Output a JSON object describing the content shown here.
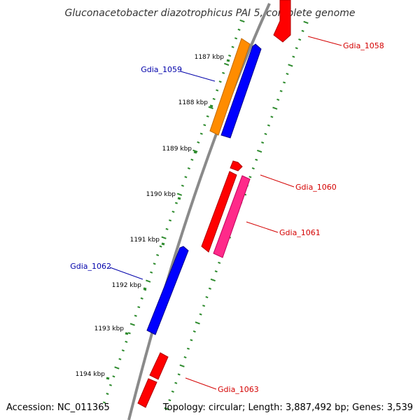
{
  "title": "Gluconacetobacter diazotrophicus PAI 5, complete genome",
  "footer": {
    "accession": "Accession: NC_011365",
    "topology": "Topology: circular; Length: 3,887,492 bp; Genes: 3,539"
  },
  "colors": {
    "backbone": "#8a8a8a",
    "ticks": "#2e8b2e",
    "forward_label": "#d40000",
    "reverse_label": "#0000aa",
    "red": "#ff0000",
    "blue": "#0000ff",
    "orange": "#ff8c00",
    "pink": "#ff2a8a"
  },
  "kbp_labels": [
    "1187 kbp",
    "1188 kbp",
    "1189 kbp",
    "1190 kbp",
    "1191 kbp",
    "1192 kbp",
    "1193 kbp",
    "1194 kbp"
  ],
  "genes": [
    {
      "name": "Gdia_1058",
      "color": "red"
    },
    {
      "name": "Gdia_1059",
      "color": "blue"
    },
    {
      "name": "",
      "color": "orange"
    },
    {
      "name": "Gdia_1060",
      "color": "red"
    },
    {
      "name": "",
      "color": "red"
    },
    {
      "name": "Gdia_1061",
      "color": "pink"
    },
    {
      "name": "Gdia_1062",
      "color": "blue"
    },
    {
      "name": "Gdia_1063",
      "color": "red"
    }
  ]
}
